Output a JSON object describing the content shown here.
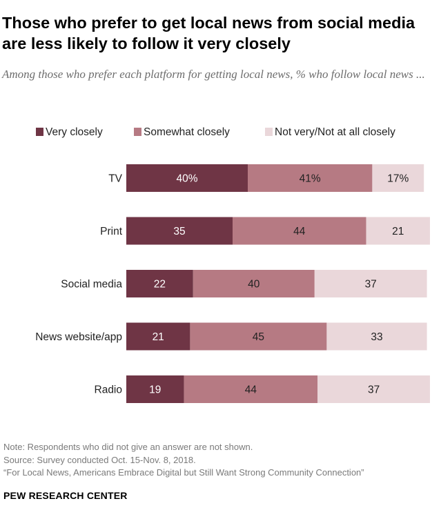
{
  "title": "Those who prefer to get local news from social media are less likely to follow it very closely",
  "subtitle": "Among those who prefer each platform for getting local news, % who follow local news ...",
  "chart_data": {
    "type": "bar",
    "orientation": "horizontal",
    "stacked": true,
    "categories": [
      "TV",
      "Print",
      "Social media",
      "News website/app",
      "Radio"
    ],
    "series": [
      {
        "name": "Very closely",
        "color": "#6f3545",
        "text_color": "#ffffff",
        "values": [
          40,
          35,
          22,
          21,
          19
        ],
        "labels": [
          "40%",
          "35",
          "22",
          "21",
          "19"
        ]
      },
      {
        "name": "Somewhat closely",
        "color": "#b67a83",
        "text_color": "#222222",
        "values": [
          41,
          44,
          40,
          45,
          44
        ],
        "labels": [
          "41%",
          "44",
          "40",
          "45",
          "44"
        ]
      },
      {
        "name": "Not very/Not at all closely",
        "color": "#ead7da",
        "text_color": "#222222",
        "values": [
          17,
          21,
          37,
          33,
          37
        ],
        "labels": [
          "17%",
          "21",
          "37",
          "33",
          "37"
        ]
      }
    ],
    "xlim": [
      0,
      100
    ],
    "legend": "top",
    "grid": false
  },
  "notes": {
    "note": "Note: Respondents who did not give an answer are not shown.",
    "source": "Source: Survey conducted Oct. 15-Nov. 8, 2018.",
    "report": "“For Local News, Americans Embrace Digital but Still Want Strong Community Connection”"
  },
  "brand": "PEW RESEARCH CENTER"
}
